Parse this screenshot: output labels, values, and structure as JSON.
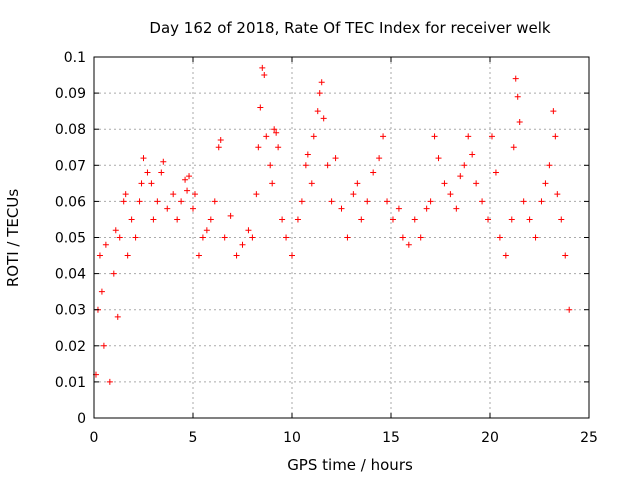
{
  "chart_data": {
    "type": "scatter",
    "title": "Day 162 of 2018, Rate Of TEC Index for receiver welk",
    "xlabel": "GPS time / hours",
    "ylabel": "ROTI / TECUs",
    "xlim": [
      0,
      25
    ],
    "ylim": [
      0,
      0.1
    ],
    "xticks": [
      0,
      5,
      10,
      15,
      20,
      25
    ],
    "xtick_labels": [
      "0",
      "5",
      "10",
      "15",
      "20",
      "25"
    ],
    "yticks": [
      0,
      0.01,
      0.02,
      0.03,
      0.04,
      0.05,
      0.06,
      0.07,
      0.08,
      0.09,
      0.1
    ],
    "ytick_labels": [
      "0",
      "0.01",
      "0.02",
      "0.03",
      "0.04",
      "0.05",
      "0.06",
      "0.07",
      "0.08",
      "0.09",
      "0.1"
    ],
    "grid": true,
    "marker": "+",
    "series": [
      {
        "name": "ROTI",
        "color": "#ff0000",
        "points": [
          [
            0.1,
            0.012
          ],
          [
            0.2,
            0.03
          ],
          [
            0.3,
            0.045
          ],
          [
            0.4,
            0.035
          ],
          [
            0.5,
            0.02
          ],
          [
            0.6,
            0.048
          ],
          [
            0.8,
            0.01
          ],
          [
            1.0,
            0.04
          ],
          [
            1.1,
            0.052
          ],
          [
            1.2,
            0.028
          ],
          [
            1.3,
            0.05
          ],
          [
            1.5,
            0.06
          ],
          [
            1.6,
            0.062
          ],
          [
            1.7,
            0.045
          ],
          [
            1.9,
            0.055
          ],
          [
            2.1,
            0.05
          ],
          [
            2.3,
            0.06
          ],
          [
            2.4,
            0.065
          ],
          [
            2.5,
            0.072
          ],
          [
            2.7,
            0.068
          ],
          [
            2.9,
            0.065
          ],
          [
            3.0,
            0.055
          ],
          [
            3.2,
            0.06
          ],
          [
            3.4,
            0.068
          ],
          [
            3.5,
            0.071
          ],
          [
            3.7,
            0.058
          ],
          [
            4.0,
            0.062
          ],
          [
            4.2,
            0.055
          ],
          [
            4.4,
            0.06
          ],
          [
            4.6,
            0.066
          ],
          [
            4.7,
            0.063
          ],
          [
            4.8,
            0.067
          ],
          [
            5.0,
            0.058
          ],
          [
            5.1,
            0.062
          ],
          [
            5.3,
            0.045
          ],
          [
            5.5,
            0.05
          ],
          [
            5.7,
            0.052
          ],
          [
            5.9,
            0.055
          ],
          [
            6.1,
            0.06
          ],
          [
            6.3,
            0.075
          ],
          [
            6.4,
            0.077
          ],
          [
            6.6,
            0.05
          ],
          [
            6.9,
            0.056
          ],
          [
            7.2,
            0.045
          ],
          [
            7.5,
            0.048
          ],
          [
            7.8,
            0.052
          ],
          [
            8.0,
            0.05
          ],
          [
            8.2,
            0.062
          ],
          [
            8.3,
            0.075
          ],
          [
            8.4,
            0.086
          ],
          [
            8.5,
            0.097
          ],
          [
            8.6,
            0.095
          ],
          [
            8.7,
            0.078
          ],
          [
            8.9,
            0.07
          ],
          [
            9.0,
            0.065
          ],
          [
            9.1,
            0.08
          ],
          [
            9.2,
            0.079
          ],
          [
            9.3,
            0.075
          ],
          [
            9.5,
            0.055
          ],
          [
            9.7,
            0.05
          ],
          [
            10.0,
            0.045
          ],
          [
            10.3,
            0.055
          ],
          [
            10.5,
            0.06
          ],
          [
            10.7,
            0.07
          ],
          [
            10.8,
            0.073
          ],
          [
            11.0,
            0.065
          ],
          [
            11.1,
            0.078
          ],
          [
            11.3,
            0.085
          ],
          [
            11.4,
            0.09
          ],
          [
            11.5,
            0.093
          ],
          [
            11.6,
            0.083
          ],
          [
            11.8,
            0.07
          ],
          [
            12.0,
            0.06
          ],
          [
            12.2,
            0.072
          ],
          [
            12.5,
            0.058
          ],
          [
            12.8,
            0.05
          ],
          [
            13.1,
            0.062
          ],
          [
            13.3,
            0.065
          ],
          [
            13.5,
            0.055
          ],
          [
            13.8,
            0.06
          ],
          [
            14.1,
            0.068
          ],
          [
            14.4,
            0.072
          ],
          [
            14.6,
            0.078
          ],
          [
            14.8,
            0.06
          ],
          [
            15.1,
            0.055
          ],
          [
            15.4,
            0.058
          ],
          [
            15.6,
            0.05
          ],
          [
            15.9,
            0.048
          ],
          [
            16.2,
            0.055
          ],
          [
            16.5,
            0.05
          ],
          [
            16.8,
            0.058
          ],
          [
            17.0,
            0.06
          ],
          [
            17.2,
            0.078
          ],
          [
            17.4,
            0.072
          ],
          [
            17.7,
            0.065
          ],
          [
            18.0,
            0.062
          ],
          [
            18.3,
            0.058
          ],
          [
            18.5,
            0.067
          ],
          [
            18.7,
            0.07
          ],
          [
            18.9,
            0.078
          ],
          [
            19.1,
            0.073
          ],
          [
            19.3,
            0.065
          ],
          [
            19.6,
            0.06
          ],
          [
            19.9,
            0.055
          ],
          [
            20.1,
            0.078
          ],
          [
            20.3,
            0.068
          ],
          [
            20.5,
            0.05
          ],
          [
            20.8,
            0.045
          ],
          [
            21.1,
            0.055
          ],
          [
            21.2,
            0.075
          ],
          [
            21.3,
            0.094
          ],
          [
            21.4,
            0.089
          ],
          [
            21.5,
            0.082
          ],
          [
            21.7,
            0.06
          ],
          [
            22.0,
            0.055
          ],
          [
            22.3,
            0.05
          ],
          [
            22.6,
            0.06
          ],
          [
            22.8,
            0.065
          ],
          [
            23.0,
            0.07
          ],
          [
            23.2,
            0.085
          ],
          [
            23.3,
            0.078
          ],
          [
            23.4,
            0.062
          ],
          [
            23.6,
            0.055
          ],
          [
            23.8,
            0.045
          ],
          [
            24.0,
            0.03
          ]
        ]
      }
    ]
  }
}
